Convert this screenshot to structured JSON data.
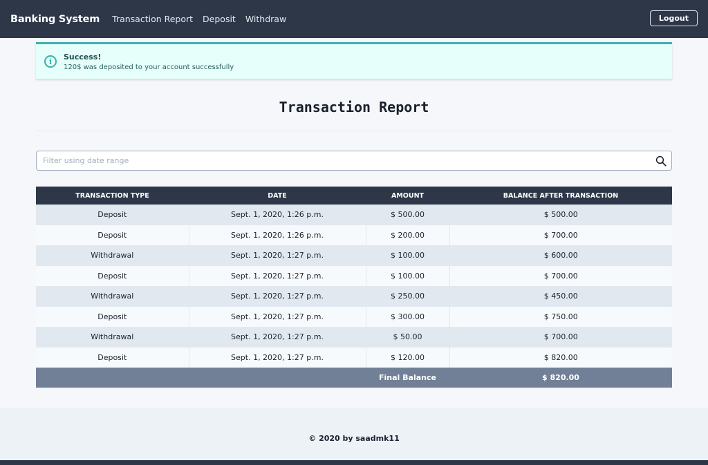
{
  "navbar": {
    "brand": "Banking System",
    "links": [
      "Transaction Report",
      "Deposit",
      "Withdraw"
    ],
    "logout_label": "Logout"
  },
  "alert": {
    "title": "Success!",
    "message": "120$ was deposited to your account successfully",
    "icon": "info-icon"
  },
  "page": {
    "title": "Transaction Report"
  },
  "search": {
    "placeholder": "Filter using date range",
    "value": ""
  },
  "table": {
    "headers": [
      "TRANSACTION TYPE",
      "DATE",
      "AMOUNT",
      "BALANCE AFTER TRANSACTION"
    ],
    "rows": [
      [
        "Deposit",
        "Sept. 1, 2020, 1:26 p.m.",
        "$ 500.00",
        "$ 500.00"
      ],
      [
        "Deposit",
        "Sept. 1, 2020, 1:26 p.m.",
        "$ 200.00",
        "$ 700.00"
      ],
      [
        "Withdrawal",
        "Sept. 1, 2020, 1:27 p.m.",
        "$ 100.00",
        "$ 600.00"
      ],
      [
        "Deposit",
        "Sept. 1, 2020, 1:27 p.m.",
        "$ 100.00",
        "$ 700.00"
      ],
      [
        "Withdrawal",
        "Sept. 1, 2020, 1:27 p.m.",
        "$ 250.00",
        "$ 450.00"
      ],
      [
        "Deposit",
        "Sept. 1, 2020, 1:27 p.m.",
        "$ 300.00",
        "$ 750.00"
      ],
      [
        "Withdrawal",
        "Sept. 1, 2020, 1:27 p.m.",
        "$ 50.00",
        "$ 700.00"
      ],
      [
        "Deposit",
        "Sept. 1, 2020, 1:27 p.m.",
        "$ 120.00",
        "$ 820.00"
      ]
    ],
    "final_label": "Final Balance",
    "final_value": "$ 820.00"
  },
  "footer": {
    "text": "© 2020 by saadmk11"
  },
  "colors": {
    "navbar": "#2d3748",
    "alert_bg": "#e6fffa",
    "alert_accent": "#38b2ac",
    "table_header": "#2d3748",
    "final_row": "#718096"
  }
}
